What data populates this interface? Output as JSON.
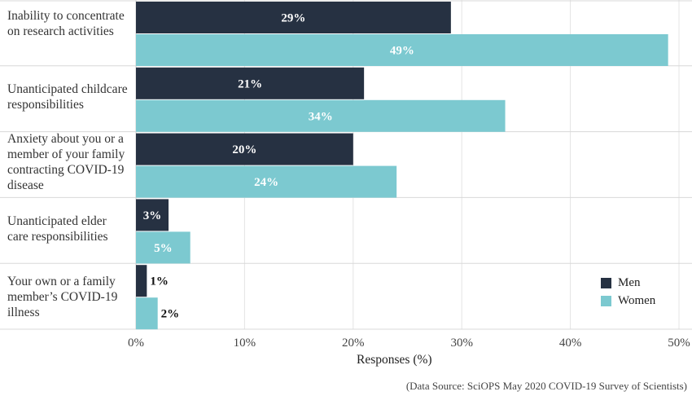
{
  "chart_data": {
    "type": "bar",
    "orientation": "horizontal",
    "categories": [
      [
        "Inability to concentrate",
        "on research activities"
      ],
      [
        "Unanticipated childcare",
        "responsibilities"
      ],
      [
        "Anxiety about you or a",
        "member of your family",
        "contracting COVID-19",
        "disease"
      ],
      [
        "Unanticipated elder",
        "care responsibilities"
      ],
      [
        "Your own or a family",
        "member’s COVID-19",
        "illness"
      ]
    ],
    "series": [
      {
        "name": "Men",
        "color": "#263142",
        "values": [
          29,
          21,
          20,
          3,
          1
        ],
        "labels": [
          "29%",
          "21%",
          "20%",
          "3%",
          "1%"
        ]
      },
      {
        "name": "Women",
        "color": "#7cc9d0",
        "values": [
          49,
          34,
          24,
          5,
          2
        ],
        "labels": [
          "49%",
          "34%",
          "24%",
          "5%",
          "2%"
        ]
      }
    ],
    "xlim": [
      0,
      50
    ],
    "xticks": [
      "0%",
      "10%",
      "20%",
      "30%",
      "40%",
      "50%"
    ],
    "xlabel": "Responses (%)",
    "legend_position": "bottom-right"
  },
  "source": "(Data Source: SciOPS May 2020 COVID-19 Survey of Scientists)"
}
